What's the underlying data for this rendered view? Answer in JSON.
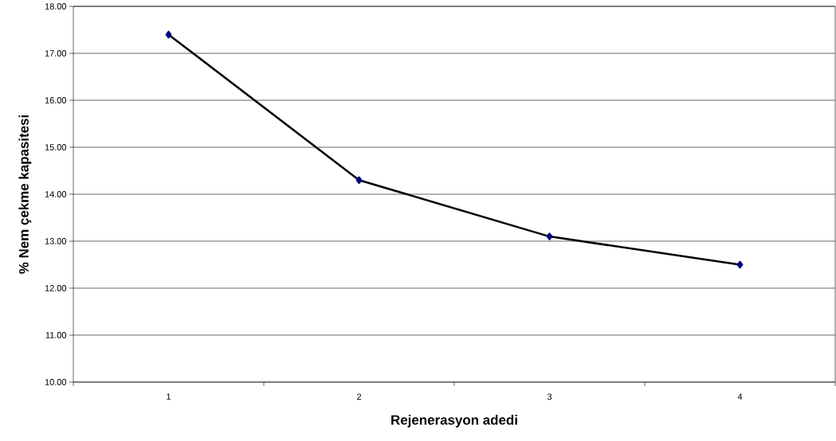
{
  "chart_data": {
    "type": "line",
    "xlabel": "Rejenerasyon adedi",
    "ylabel": "% Nem çekme kapasitesi",
    "categories": [
      "1",
      "2",
      "3",
      "4"
    ],
    "series": [
      {
        "color": "#000000",
        "values": [
          17.4,
          14.3,
          13.1,
          12.5
        ]
      }
    ],
    "ylim": [
      10,
      18
    ],
    "yticks": [
      {
        "value": 10,
        "label": "10.00"
      },
      {
        "value": 11,
        "label": "11.00"
      },
      {
        "value": 12,
        "label": "12.00"
      },
      {
        "value": 13,
        "label": "13.00"
      },
      {
        "value": 14,
        "label": "14.00"
      },
      {
        "value": 15,
        "label": "15.00"
      },
      {
        "value": 16,
        "label": "16.00"
      },
      {
        "value": 17,
        "label": "17.00"
      },
      {
        "value": 18,
        "label": "18.00"
      }
    ],
    "grid": "y",
    "marker": "diamond",
    "line_style": "solid"
  }
}
